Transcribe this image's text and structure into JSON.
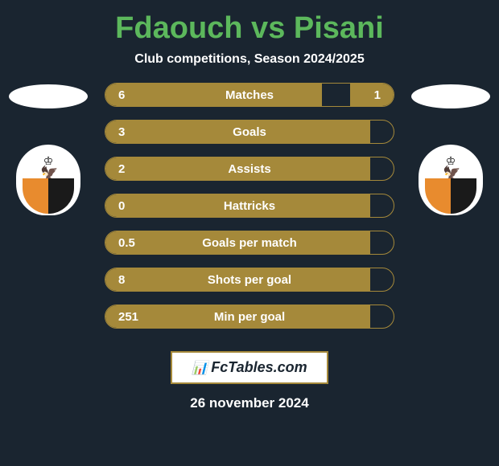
{
  "title": "Fdaouch vs Pisani",
  "subtitle": "Club competitions, Season 2024/2025",
  "date": "26 november 2024",
  "brand": "FcTables.com",
  "colors": {
    "background": "#1a2530",
    "title_color": "#5cb85c",
    "accent": "#a5893a",
    "text": "#ffffff"
  },
  "player_left": {
    "name": "Fdaouch"
  },
  "player_right": {
    "name": "Pisani"
  },
  "stats": [
    {
      "label": "Matches",
      "left_value": "6",
      "right_value": "1",
      "left_fill_pct": 75,
      "right_fill_pct": 15
    },
    {
      "label": "Goals",
      "left_value": "3",
      "right_value": "",
      "left_fill_pct": 92,
      "right_fill_pct": 0
    },
    {
      "label": "Assists",
      "left_value": "2",
      "right_value": "",
      "left_fill_pct": 92,
      "right_fill_pct": 0
    },
    {
      "label": "Hattricks",
      "left_value": "0",
      "right_value": "",
      "left_fill_pct": 92,
      "right_fill_pct": 0
    },
    {
      "label": "Goals per match",
      "left_value": "0.5",
      "right_value": "",
      "left_fill_pct": 92,
      "right_fill_pct": 0
    },
    {
      "label": "Shots per goal",
      "left_value": "8",
      "right_value": "",
      "left_fill_pct": 92,
      "right_fill_pct": 0
    },
    {
      "label": "Min per goal",
      "left_value": "251",
      "right_value": "",
      "left_fill_pct": 92,
      "right_fill_pct": 0
    }
  ]
}
